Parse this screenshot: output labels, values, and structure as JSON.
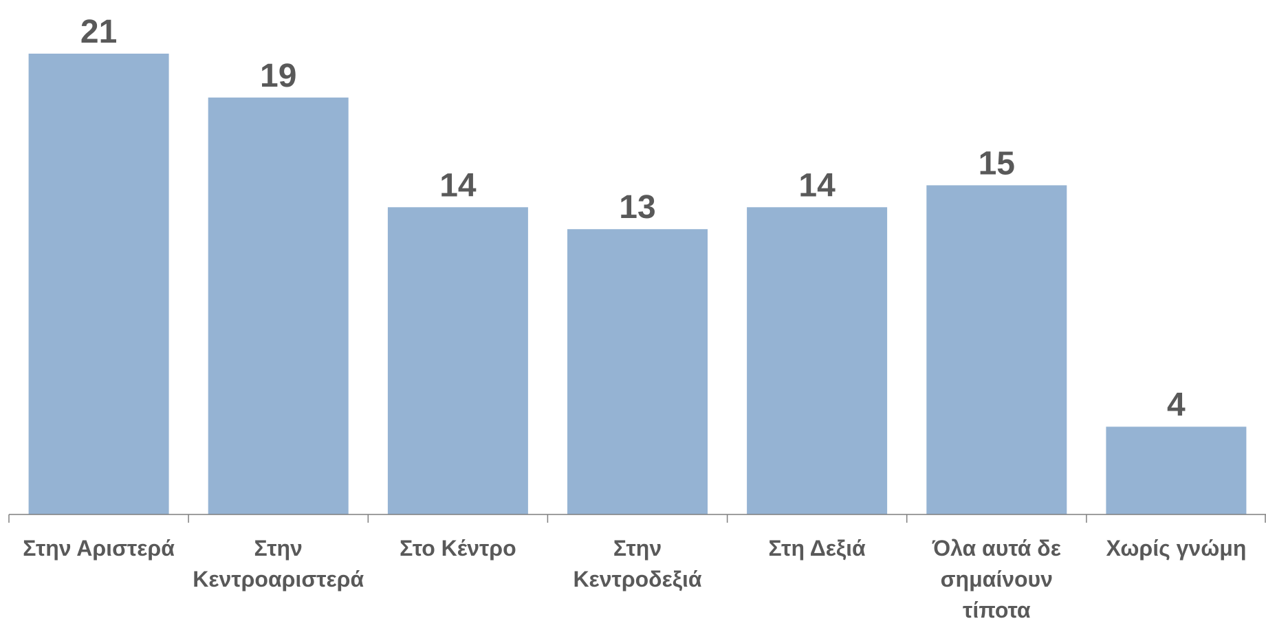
{
  "chart_data": {
    "type": "bar",
    "categories": [
      [
        "Στην Αριστερά"
      ],
      [
        "Στην",
        "Κεντροαριστερά"
      ],
      [
        "Στο Κέντρο"
      ],
      [
        "Στην",
        "Κεντροδεξιά"
      ],
      [
        "Στη Δεξιά"
      ],
      [
        "Όλα αυτά δε",
        "σημαίνουν",
        "τίποτα"
      ],
      [
        "Χωρίς γνώμη"
      ]
    ],
    "values": [
      21,
      19,
      14,
      13,
      14,
      15,
      4
    ],
    "ylim": [
      0,
      23
    ],
    "grid": false,
    "legend": "none",
    "colors": {
      "bar": "#95B3D3",
      "text": "#595959",
      "axis": "#7f7f7f"
    }
  }
}
